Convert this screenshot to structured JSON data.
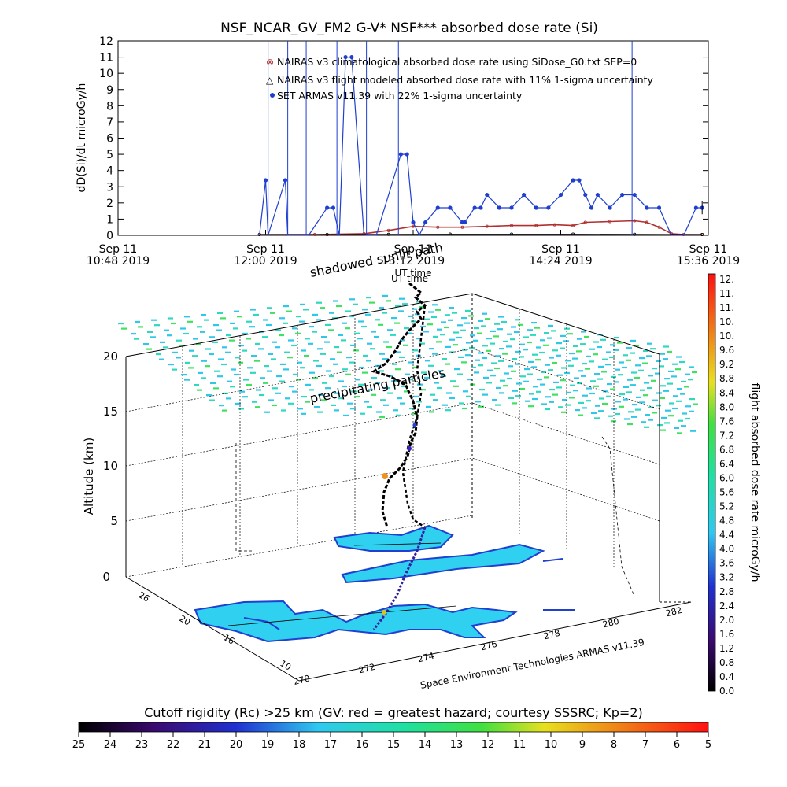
{
  "chart_data": [
    {
      "type": "line",
      "title": "NSF_NCAR_GV_FM2 G-V* NSF*** absorbed dose rate (Si)",
      "ylabel": "dD(Si)/dt microGy/h",
      "ylim": [
        0,
        12
      ],
      "yticks": [
        0,
        1,
        2,
        3,
        4,
        5,
        6,
        7,
        8,
        9,
        10,
        11,
        12
      ],
      "xlim": [
        10.8,
        15.6
      ],
      "xticks": [
        {
          "x": 10.8,
          "l1": "Sep 11",
          "l2": "10:48 2019"
        },
        {
          "x": 12.0,
          "l1": "Sep 11",
          "l2": "12:00 2019"
        },
        {
          "x": 13.2,
          "l1": "Sep 11",
          "l2": "13:12 2019"
        },
        {
          "x": 14.4,
          "l1": "Sep 11",
          "l2": "14:24 2019"
        },
        {
          "x": 15.6,
          "l1": "Sep 11",
          "l2": "15:36 2019"
        }
      ],
      "xlabel": "UT time",
      "legend_position": "top-right",
      "series": [
        {
          "name": "NAIRAS v3 climatological absorbed dose rate using SiDose_G0.txt SEP=0",
          "color": "#b03030",
          "x": [
            11.95,
            12.4,
            12.8,
            13.0,
            13.2,
            13.4,
            13.6,
            13.8,
            14.0,
            14.2,
            14.35,
            14.5,
            14.6,
            14.8,
            15.0,
            15.1,
            15.2,
            15.3,
            15.4,
            15.55
          ],
          "values": [
            0.05,
            0.05,
            0.1,
            0.3,
            0.55,
            0.5,
            0.5,
            0.55,
            0.6,
            0.6,
            0.65,
            0.6,
            0.8,
            0.85,
            0.9,
            0.8,
            0.5,
            0.1,
            0.05,
            0.05
          ]
        },
        {
          "name": "NAIRAS v3 flight modeled absorbed dose rate with 11% 1-sigma uncertainty",
          "color": "#000000",
          "x": [
            11.95,
            12.5,
            13.0,
            13.5,
            14.0,
            14.5,
            15.0,
            15.55
          ],
          "values": [
            0.05,
            0.05,
            0.06,
            0.07,
            0.07,
            0.07,
            0.06,
            0.05
          ]
        },
        {
          "name": "SET ARMAS v11.39 with 22% 1-sigma uncertainty",
          "color": "#1f3fd0",
          "x": [
            11.95,
            12.0,
            12.02,
            12.16,
            12.18,
            12.3,
            12.35,
            12.5,
            12.55,
            12.6,
            12.65,
            12.7,
            12.8,
            12.9,
            13.1,
            13.15,
            13.2,
            13.25,
            13.3,
            13.4,
            13.5,
            13.6,
            13.62,
            13.7,
            13.75,
            13.8,
            13.9,
            14.0,
            14.1,
            14.2,
            14.3,
            14.4,
            14.5,
            14.55,
            14.6,
            14.65,
            14.7,
            14.8,
            14.9,
            15.0,
            15.1,
            15.2,
            15.3,
            15.4,
            15.5,
            15.55
          ],
          "values": [
            0,
            3.4,
            0,
            3.4,
            0,
            0,
            0,
            1.7,
            1.7,
            0,
            11,
            11,
            0,
            0,
            5,
            5,
            0.8,
            0,
            0.8,
            1.7,
            1.7,
            0.8,
            0.8,
            1.7,
            1.7,
            2.5,
            1.7,
            1.7,
            2.5,
            1.7,
            1.7,
            2.5,
            3.4,
            3.4,
            2.5,
            1.7,
            2.5,
            1.7,
            2.5,
            2.5,
            1.7,
            1.7,
            0,
            0,
            1.7,
            1.7
          ]
        }
      ]
    },
    {
      "type": "scatter",
      "title": "",
      "zlabel": "Altitude (km)",
      "zticks": [
        0,
        5,
        10,
        15,
        20
      ],
      "lon_ticks": [
        "270",
        "272",
        "274",
        "276",
        "278",
        "280",
        "282"
      ],
      "lat_ticks": [
        "10",
        "16",
        "20",
        "26"
      ],
      "annotations": [
        "shadowed sunlit path",
        "precipitating particles",
        "UT time"
      ],
      "credit": "Space Environment Technologies ARMAS v11.39",
      "colorbar": {
        "label": "flight absorbed dose rate microGy/h",
        "min": 0,
        "max": 12,
        "labels": [
          "12.",
          "11.",
          "11.",
          "10.",
          "10.",
          "9.6",
          "9.2",
          "8.8",
          "8.4",
          "8.0",
          "7.6",
          "7.2",
          "6.8",
          "6.4",
          "6.0",
          "5.6",
          "5.2",
          "4.8",
          "4.4",
          "4.0",
          "3.6",
          "3.2",
          "2.8",
          "2.4",
          "2.0",
          "1.6",
          "1.2",
          "0.8",
          "0.4",
          "0.0"
        ]
      }
    },
    {
      "type": "heatmap",
      "title": "Cutoff rigidity (Rc) >25 km (GV: red = greatest hazard; courtesy SSSRC; Kp=2)",
      "ticks": [
        "25",
        "24",
        "23",
        "22",
        "21",
        "20",
        "19",
        "18",
        "17",
        "16",
        "15",
        "14",
        "13",
        "12",
        "11",
        "10",
        "9",
        "8",
        "7",
        "6",
        "5"
      ],
      "range": [
        25,
        5
      ]
    }
  ]
}
